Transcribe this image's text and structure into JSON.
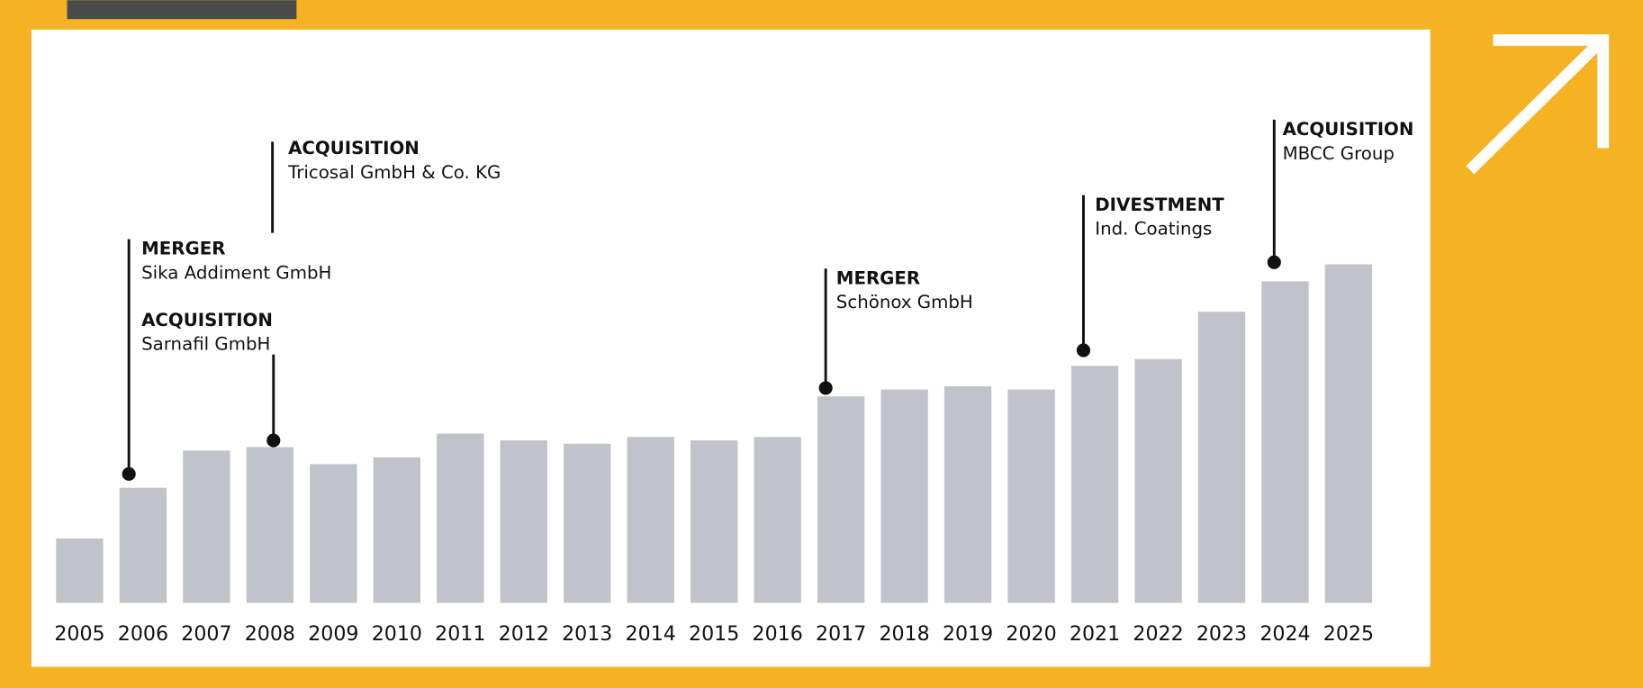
{
  "chart_data": {
    "type": "bar",
    "categories": [
      "2005",
      "2006",
      "2007",
      "2008",
      "2009",
      "2010",
      "2011",
      "2012",
      "2013",
      "2014",
      "2015",
      "2016",
      "2017",
      "2018",
      "2019",
      "2020",
      "2021",
      "2022",
      "2023",
      "2024",
      "2025"
    ],
    "values": [
      19,
      34,
      45,
      46,
      41,
      43,
      50,
      48,
      47,
      49,
      48,
      49,
      61,
      63,
      64,
      63,
      70,
      72,
      86,
      95,
      100
    ],
    "color": "#c0c4ca",
    "ylim": [
      0,
      100
    ],
    "annotations": [
      {
        "kind": "MERGER",
        "text": "Sika Addiment GmbH"
      },
      {
        "kind": "ACQUISITION",
        "text": "Sarnafil GmbH"
      },
      {
        "kind": "ACQUISITION",
        "text": "Tricosal GmbH & Co. KG"
      },
      {
        "kind": "MERGER",
        "text": "Schönox GmbH"
      },
      {
        "kind": "DIVESTMENT",
        "text": "Ind. Coatings"
      },
      {
        "kind": "ACQUISITION",
        "text": "MBCC Group"
      }
    ]
  }
}
